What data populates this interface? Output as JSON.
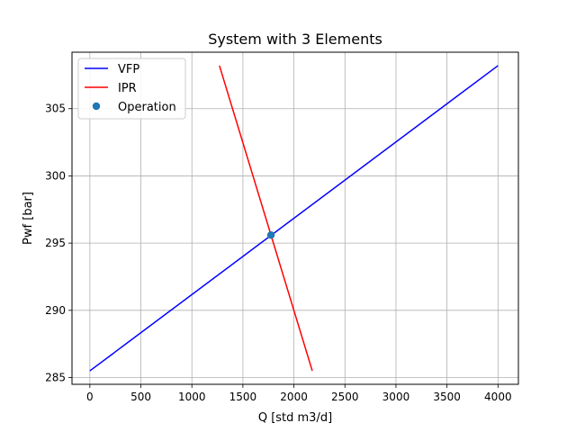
{
  "chart_data": {
    "type": "line",
    "title": "System with 3 Elements",
    "xlabel": "Q [std m3/d]",
    "ylabel": "Pwf [bar]",
    "xlim": [
      -175,
      4200
    ],
    "ylim": [
      284.5,
      309.2
    ],
    "xticks": [
      0,
      500,
      1000,
      1500,
      2000,
      2500,
      3000,
      3500,
      4000
    ],
    "yticks": [
      285,
      290,
      295,
      300,
      305
    ],
    "grid": true,
    "legend_position": "upper-left",
    "series": [
      {
        "name": "VFP",
        "color": "#0000ff",
        "style": "line",
        "x": [
          0,
          4000
        ],
        "y": [
          285.5,
          308.2
        ]
      },
      {
        "name": "IPR",
        "color": "#ff0000",
        "style": "line",
        "x": [
          1270,
          2180
        ],
        "y": [
          308.2,
          285.5
        ]
      },
      {
        "name": "Operation",
        "color": "#1f77b4",
        "style": "marker",
        "x": [
          1775
        ],
        "y": [
          295.6
        ]
      }
    ]
  }
}
